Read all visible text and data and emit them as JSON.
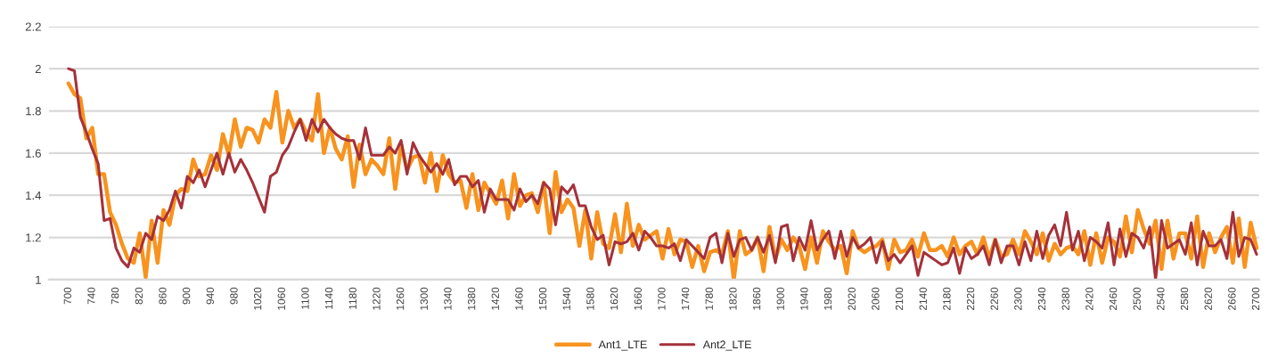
{
  "chart_data": {
    "type": "line",
    "x": [
      700,
      710,
      720,
      730,
      740,
      750,
      760,
      770,
      780,
      790,
      800,
      810,
      820,
      830,
      840,
      850,
      860,
      870,
      880,
      890,
      900,
      910,
      920,
      930,
      940,
      950,
      960,
      970,
      980,
      990,
      1000,
      1010,
      1020,
      1030,
      1040,
      1050,
      1060,
      1070,
      1080,
      1090,
      1100,
      1110,
      1120,
      1130,
      1140,
      1150,
      1160,
      1170,
      1180,
      1190,
      1200,
      1210,
      1220,
      1230,
      1240,
      1250,
      1260,
      1270,
      1280,
      1290,
      1300,
      1310,
      1320,
      1330,
      1340,
      1350,
      1360,
      1370,
      1380,
      1390,
      1400,
      1410,
      1420,
      1430,
      1440,
      1450,
      1460,
      1470,
      1480,
      1490,
      1500,
      1510,
      1520,
      1530,
      1540,
      1550,
      1560,
      1570,
      1580,
      1590,
      1600,
      1610,
      1620,
      1630,
      1640,
      1650,
      1660,
      1670,
      1680,
      1690,
      1700,
      1710,
      1720,
      1730,
      1740,
      1750,
      1760,
      1770,
      1780,
      1790,
      1800,
      1810,
      1820,
      1830,
      1840,
      1850,
      1860,
      1870,
      1880,
      1890,
      1900,
      1910,
      1920,
      1930,
      1940,
      1950,
      1960,
      1970,
      1980,
      1990,
      2000,
      2010,
      2020,
      2030,
      2040,
      2050,
      2060,
      2070,
      2080,
      2090,
      2100,
      2110,
      2120,
      2130,
      2140,
      2150,
      2160,
      2170,
      2180,
      2190,
      2200,
      2210,
      2220,
      2230,
      2240,
      2250,
      2260,
      2270,
      2280,
      2290,
      2300,
      2310,
      2320,
      2330,
      2340,
      2350,
      2360,
      2370,
      2380,
      2390,
      2400,
      2410,
      2420,
      2430,
      2440,
      2450,
      2460,
      2470,
      2480,
      2490,
      2500,
      2510,
      2520,
      2530,
      2540,
      2550,
      2560,
      2570,
      2580,
      2590,
      2600,
      2610,
      2620,
      2630,
      2640,
      2650,
      2660,
      2670,
      2680,
      2690,
      2700
    ],
    "series": [
      {
        "name": "Ant1_LTE",
        "color": "#f7931e",
        "values": [
          1.93,
          1.88,
          1.86,
          1.67,
          1.72,
          1.5,
          1.5,
          1.32,
          1.26,
          1.17,
          1.1,
          1.08,
          1.22,
          1.01,
          1.28,
          1.08,
          1.33,
          1.26,
          1.4,
          1.43,
          1.42,
          1.57,
          1.49,
          1.5,
          1.59,
          1.52,
          1.69,
          1.59,
          1.76,
          1.63,
          1.72,
          1.71,
          1.65,
          1.76,
          1.72,
          1.89,
          1.65,
          1.8,
          1.72,
          1.76,
          1.7,
          1.66,
          1.88,
          1.6,
          1.72,
          1.62,
          1.57,
          1.68,
          1.44,
          1.64,
          1.5,
          1.57,
          1.54,
          1.5,
          1.67,
          1.43,
          1.64,
          1.52,
          1.58,
          1.59,
          1.46,
          1.6,
          1.42,
          1.59,
          1.5,
          1.46,
          1.47,
          1.34,
          1.5,
          1.33,
          1.46,
          1.41,
          1.36,
          1.47,
          1.29,
          1.5,
          1.35,
          1.4,
          1.41,
          1.32,
          1.46,
          1.22,
          1.51,
          1.32,
          1.38,
          1.34,
          1.16,
          1.33,
          1.1,
          1.32,
          1.17,
          1.15,
          1.31,
          1.13,
          1.36,
          1.16,
          1.26,
          1.19,
          1.21,
          1.23,
          1.1,
          1.24,
          1.12,
          1.19,
          1.18,
          1.06,
          1.16,
          1.04,
          1.13,
          1.14,
          1.12,
          1.23,
          1.0,
          1.23,
          1.12,
          1.14,
          1.2,
          1.04,
          1.25,
          1.1,
          1.19,
          1.14,
          1.2,
          1.16,
          1.05,
          1.2,
          1.08,
          1.23,
          1.18,
          1.14,
          1.16,
          1.03,
          1.23,
          1.15,
          1.13,
          1.15,
          1.16,
          1.19,
          1.05,
          1.19,
          1.13,
          1.14,
          1.19,
          1.11,
          1.22,
          1.14,
          1.14,
          1.16,
          1.11,
          1.2,
          1.12,
          1.16,
          1.18,
          1.12,
          1.2,
          1.1,
          1.19,
          1.11,
          1.12,
          1.19,
          1.12,
          1.23,
          1.18,
          1.12,
          1.22,
          1.09,
          1.17,
          1.12,
          1.15,
          1.16,
          1.12,
          1.23,
          1.07,
          1.22,
          1.08,
          1.2,
          1.18,
          1.11,
          1.3,
          1.13,
          1.33,
          1.24,
          1.17,
          1.28,
          1.05,
          1.28,
          1.1,
          1.22,
          1.22,
          1.1,
          1.3,
          1.06,
          1.22,
          1.13,
          1.2,
          1.25,
          1.08,
          1.29,
          1.06,
          1.27,
          1.15
        ]
      },
      {
        "name": "Ant2_LTE",
        "color": "#a5313a",
        "values": [
          2.0,
          1.99,
          1.77,
          1.7,
          1.62,
          1.55,
          1.28,
          1.29,
          1.15,
          1.09,
          1.06,
          1.15,
          1.13,
          1.22,
          1.19,
          1.3,
          1.28,
          1.33,
          1.42,
          1.34,
          1.49,
          1.46,
          1.52,
          1.44,
          1.52,
          1.6,
          1.5,
          1.6,
          1.51,
          1.57,
          1.52,
          1.46,
          1.39,
          1.32,
          1.49,
          1.51,
          1.59,
          1.63,
          1.7,
          1.76,
          1.66,
          1.76,
          1.7,
          1.76,
          1.72,
          1.69,
          1.67,
          1.66,
          1.66,
          1.57,
          1.72,
          1.59,
          1.59,
          1.59,
          1.63,
          1.6,
          1.66,
          1.5,
          1.65,
          1.59,
          1.55,
          1.51,
          1.55,
          1.5,
          1.57,
          1.45,
          1.49,
          1.49,
          1.44,
          1.47,
          1.32,
          1.43,
          1.38,
          1.38,
          1.38,
          1.33,
          1.43,
          1.37,
          1.4,
          1.36,
          1.46,
          1.43,
          1.26,
          1.44,
          1.41,
          1.45,
          1.35,
          1.35,
          1.25,
          1.19,
          1.21,
          1.07,
          1.18,
          1.17,
          1.18,
          1.22,
          1.14,
          1.23,
          1.2,
          1.16,
          1.16,
          1.15,
          1.17,
          1.09,
          1.19,
          1.16,
          1.13,
          1.1,
          1.2,
          1.22,
          1.08,
          1.22,
          1.11,
          1.19,
          1.2,
          1.14,
          1.2,
          1.13,
          1.21,
          1.08,
          1.25,
          1.26,
          1.09,
          1.2,
          1.14,
          1.28,
          1.14,
          1.19,
          1.23,
          1.1,
          1.23,
          1.11,
          1.2,
          1.15,
          1.17,
          1.2,
          1.08,
          1.18,
          1.09,
          1.12,
          1.08,
          1.12,
          1.16,
          1.02,
          1.13,
          1.11,
          1.09,
          1.07,
          1.08,
          1.15,
          1.03,
          1.15,
          1.1,
          1.12,
          1.16,
          1.07,
          1.19,
          1.08,
          1.16,
          1.16,
          1.07,
          1.18,
          1.09,
          1.23,
          1.1,
          1.21,
          1.26,
          1.16,
          1.32,
          1.14,
          1.23,
          1.09,
          1.2,
          1.18,
          1.15,
          1.27,
          1.07,
          1.24,
          1.11,
          1.22,
          1.2,
          1.15,
          1.25,
          1.0,
          1.28,
          1.15,
          1.17,
          1.19,
          1.12,
          1.27,
          1.07,
          1.23,
          1.16,
          1.16,
          1.19,
          1.1,
          1.32,
          1.11,
          1.2,
          1.19,
          1.12
        ]
      }
    ],
    "xlim": [
      667,
      2704
    ],
    "xticks": [
      700,
      740,
      780,
      820,
      860,
      900,
      940,
      980,
      1020,
      1060,
      1100,
      1140,
      1180,
      1220,
      1260,
      1300,
      1340,
      1380,
      1420,
      1460,
      1500,
      1540,
      1580,
      1620,
      1660,
      1700,
      1740,
      1780,
      1820,
      1860,
      1900,
      1940,
      1980,
      2020,
      2060,
      2100,
      2140,
      2180,
      2220,
      2260,
      2300,
      2340,
      2380,
      2420,
      2460,
      2500,
      2540,
      2580,
      2620,
      2660,
      2700
    ],
    "ylim": [
      1,
      2.2
    ],
    "yticks": [
      1,
      1.2,
      1.4,
      1.6,
      1.8,
      2,
      2.2
    ],
    "grid": "y",
    "legend": "bottom",
    "marker": "none",
    "line_style": "solid"
  }
}
